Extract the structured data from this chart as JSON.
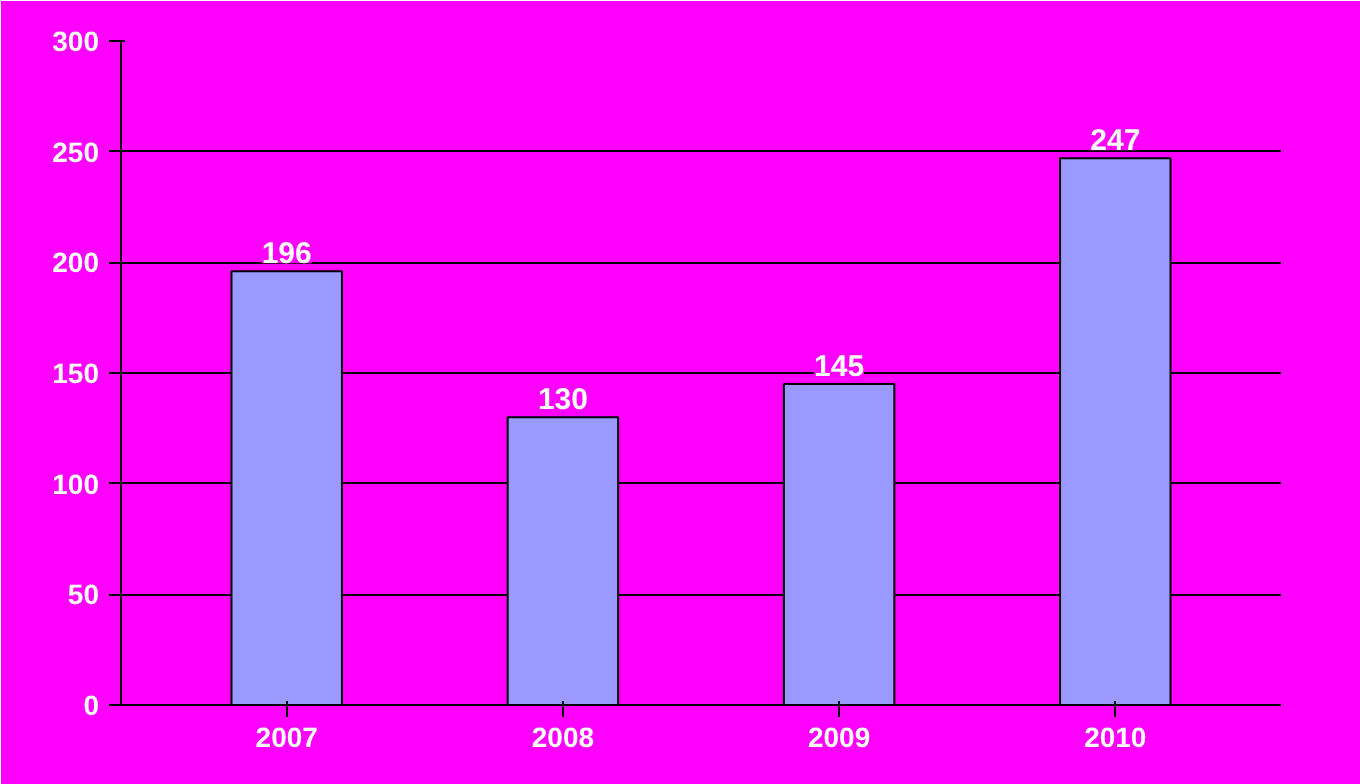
{
  "chart_data": {
    "type": "bar",
    "categories": [
      "2007",
      "2008",
      "2009",
      "2010"
    ],
    "values": [
      196,
      130,
      145,
      247
    ],
    "color": "#9999ff",
    "ylim": [
      0,
      300
    ],
    "yticks": [
      0,
      50,
      100,
      150,
      200,
      250,
      300
    ],
    "grid": "y",
    "data_labels": true
  }
}
